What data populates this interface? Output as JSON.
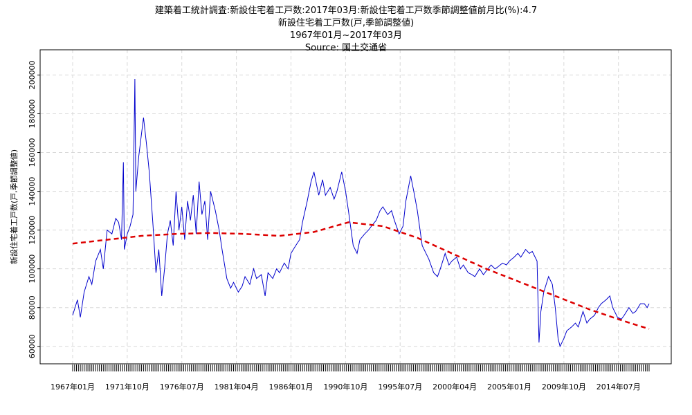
{
  "chart_data": {
    "type": "line",
    "title": "建築着工統計調査:新設住宅着工戸数:2017年03月:新設住宅着工戸数季節調整値前月比(%):4.7",
    "subtitle": "新設住宅着工戸数(戸,季節調整値)",
    "period": "1967年01月~2017年03月",
    "source": "Source: 国土交通省",
    "ylabel": "新設住宅着工戸数(戸,季節調整値)",
    "xlabel": "",
    "ylim": [
      51000,
      213000
    ],
    "yticks": [
      60000,
      80000,
      100000,
      120000,
      140000,
      160000,
      180000,
      200000
    ],
    "x_tick_labels": [
      "1967年01月",
      "1971年10月",
      "1976年07月",
      "1981年04月",
      "1986年01月",
      "1990年10月",
      "1995年07月",
      "2000年04月",
      "2005年01月",
      "2009年10月",
      "2014年07月"
    ],
    "x_range": [
      "1967年01月",
      "2017年03月"
    ],
    "grid": true,
    "series": [
      {
        "name": "",
        "color": "#0000cc",
        "style": "solid",
        "points": [
          [
            "1967-01",
            76000
          ],
          [
            "1967-06",
            84000
          ],
          [
            "1967-09",
            75000
          ],
          [
            "1968-01",
            88000
          ],
          [
            "1968-06",
            96000
          ],
          [
            "1968-09",
            92000
          ],
          [
            "1969-01",
            104000
          ],
          [
            "1969-06",
            110000
          ],
          [
            "1969-09",
            100000
          ],
          [
            "1970-01",
            120000
          ],
          [
            "1970-06",
            118000
          ],
          [
            "1970-10",
            126000
          ],
          [
            "1971-01",
            124000
          ],
          [
            "1971-04",
            115000
          ],
          [
            "1971-06",
            155000
          ],
          [
            "1971-07",
            110000
          ],
          [
            "1971-10",
            118000
          ],
          [
            "1972-01",
            122000
          ],
          [
            "1972-04",
            128000
          ],
          [
            "1972-06",
            198000
          ],
          [
            "1972-07",
            140000
          ],
          [
            "1972-10",
            158000
          ],
          [
            "1973-01",
            170000
          ],
          [
            "1973-03",
            178000
          ],
          [
            "1973-06",
            165000
          ],
          [
            "1973-09",
            150000
          ],
          [
            "1974-01",
            122000
          ],
          [
            "1974-04",
            98000
          ],
          [
            "1974-07",
            110000
          ],
          [
            "1974-10",
            86000
          ],
          [
            "1975-01",
            100000
          ],
          [
            "1975-04",
            118000
          ],
          [
            "1975-07",
            125000
          ],
          [
            "1975-10",
            112000
          ],
          [
            "1976-01",
            140000
          ],
          [
            "1976-04",
            120000
          ],
          [
            "1976-07",
            132000
          ],
          [
            "1976-10",
            115000
          ],
          [
            "1977-01",
            135000
          ],
          [
            "1977-04",
            125000
          ],
          [
            "1977-07",
            138000
          ],
          [
            "1977-10",
            118000
          ],
          [
            "1978-01",
            145000
          ],
          [
            "1978-04",
            128000
          ],
          [
            "1978-07",
            135000
          ],
          [
            "1978-10",
            115000
          ],
          [
            "1979-01",
            140000
          ],
          [
            "1979-06",
            130000
          ],
          [
            "1979-10",
            120000
          ],
          [
            "1980-01",
            110000
          ],
          [
            "1980-06",
            95000
          ],
          [
            "1980-10",
            90000
          ],
          [
            "1981-01",
            93000
          ],
          [
            "1981-06",
            88000
          ],
          [
            "1981-10",
            91000
          ],
          [
            "1982-01",
            96000
          ],
          [
            "1982-06",
            92000
          ],
          [
            "1982-10",
            100000
          ],
          [
            "1983-01",
            95000
          ],
          [
            "1983-06",
            97000
          ],
          [
            "1983-10",
            86000
          ],
          [
            "1984-01",
            98000
          ],
          [
            "1984-06",
            95000
          ],
          [
            "1984-10",
            100000
          ],
          [
            "1985-01",
            98000
          ],
          [
            "1985-06",
            103000
          ],
          [
            "1985-10",
            100000
          ],
          [
            "1986-01",
            108000
          ],
          [
            "1986-06",
            112000
          ],
          [
            "1986-10",
            115000
          ],
          [
            "1987-01",
            124000
          ],
          [
            "1987-06",
            135000
          ],
          [
            "1987-10",
            145000
          ],
          [
            "1988-01",
            150000
          ],
          [
            "1988-06",
            138000
          ],
          [
            "1988-10",
            146000
          ],
          [
            "1989-01",
            138000
          ],
          [
            "1989-06",
            142000
          ],
          [
            "1989-10",
            136000
          ],
          [
            "1990-01",
            140000
          ],
          [
            "1990-06",
            150000
          ],
          [
            "1990-10",
            140000
          ],
          [
            "1991-01",
            130000
          ],
          [
            "1991-06",
            112000
          ],
          [
            "1991-10",
            108000
          ],
          [
            "1992-01",
            115000
          ],
          [
            "1992-06",
            118000
          ],
          [
            "1992-10",
            120000
          ],
          [
            "1993-01",
            122000
          ],
          [
            "1993-06",
            125000
          ],
          [
            "1993-10",
            130000
          ],
          [
            "1994-01",
            132000
          ],
          [
            "1994-06",
            128000
          ],
          [
            "1994-10",
            130000
          ],
          [
            "1995-01",
            125000
          ],
          [
            "1995-06",
            118000
          ],
          [
            "1995-10",
            122000
          ],
          [
            "1996-01",
            135000
          ],
          [
            "1996-06",
            148000
          ],
          [
            "1996-10",
            138000
          ],
          [
            "1997-01",
            130000
          ],
          [
            "1997-06",
            112000
          ],
          [
            "1997-10",
            108000
          ],
          [
            "1998-01",
            105000
          ],
          [
            "1998-06",
            98000
          ],
          [
            "1998-10",
            96000
          ],
          [
            "1999-01",
            100000
          ],
          [
            "1999-06",
            108000
          ],
          [
            "1999-10",
            102000
          ],
          [
            "2000-01",
            104000
          ],
          [
            "2000-06",
            106000
          ],
          [
            "2000-10",
            100000
          ],
          [
            "2001-01",
            102000
          ],
          [
            "2001-06",
            98000
          ],
          [
            "2001-10",
            97000
          ],
          [
            "2002-01",
            96000
          ],
          [
            "2002-06",
            100000
          ],
          [
            "2002-10",
            97000
          ],
          [
            "2003-01",
            99000
          ],
          [
            "2003-06",
            102000
          ],
          [
            "2003-10",
            100000
          ],
          [
            "2004-01",
            101000
          ],
          [
            "2004-06",
            103000
          ],
          [
            "2004-10",
            102000
          ],
          [
            "2005-01",
            104000
          ],
          [
            "2005-06",
            106000
          ],
          [
            "2005-10",
            108000
          ],
          [
            "2006-01",
            106000
          ],
          [
            "2006-06",
            110000
          ],
          [
            "2006-10",
            108000
          ],
          [
            "2007-01",
            109000
          ],
          [
            "2007-06",
            104000
          ],
          [
            "2007-08",
            62000
          ],
          [
            "2007-10",
            78000
          ],
          [
            "2008-01",
            88000
          ],
          [
            "2008-06",
            96000
          ],
          [
            "2008-10",
            92000
          ],
          [
            "2009-01",
            80000
          ],
          [
            "2009-04",
            64000
          ],
          [
            "2009-06",
            60000
          ],
          [
            "2009-10",
            64000
          ],
          [
            "2010-01",
            68000
          ],
          [
            "2010-06",
            70000
          ],
          [
            "2010-10",
            72000
          ],
          [
            "2011-01",
            70000
          ],
          [
            "2011-06",
            78000
          ],
          [
            "2011-10",
            72000
          ],
          [
            "2012-01",
            74000
          ],
          [
            "2012-06",
            76000
          ],
          [
            "2012-10",
            80000
          ],
          [
            "2013-01",
            82000
          ],
          [
            "2013-06",
            84000
          ],
          [
            "2013-10",
            86000
          ],
          [
            "2014-01",
            80000
          ],
          [
            "2014-06",
            75000
          ],
          [
            "2014-10",
            74000
          ],
          [
            "2015-01",
            76000
          ],
          [
            "2015-06",
            80000
          ],
          [
            "2015-10",
            77000
          ],
          [
            "2016-01",
            78000
          ],
          [
            "2016-06",
            82000
          ],
          [
            "2016-10",
            82000
          ],
          [
            "2017-01",
            80000
          ],
          [
            "2017-03",
            82000
          ]
        ]
      },
      {
        "name": "",
        "color": "#dd0000",
        "style": "dashed",
        "points": [
          [
            "1967-01",
            113000
          ],
          [
            "1970-01",
            115000
          ],
          [
            "1973-01",
            117000
          ],
          [
            "1976-01",
            118000
          ],
          [
            "1979-01",
            118500
          ],
          [
            "1982-01",
            118000
          ],
          [
            "1985-01",
            117000
          ],
          [
            "1988-01",
            119000
          ],
          [
            "1991-01",
            124000
          ],
          [
            "1994-01",
            122000
          ],
          [
            "1997-01",
            116000
          ],
          [
            "2000-01",
            108000
          ],
          [
            "2003-01",
            100000
          ],
          [
            "2006-01",
            93000
          ],
          [
            "2009-01",
            86000
          ],
          [
            "2012-01",
            79000
          ],
          [
            "2015-01",
            73000
          ],
          [
            "2017-03",
            69000
          ]
        ]
      }
    ]
  }
}
